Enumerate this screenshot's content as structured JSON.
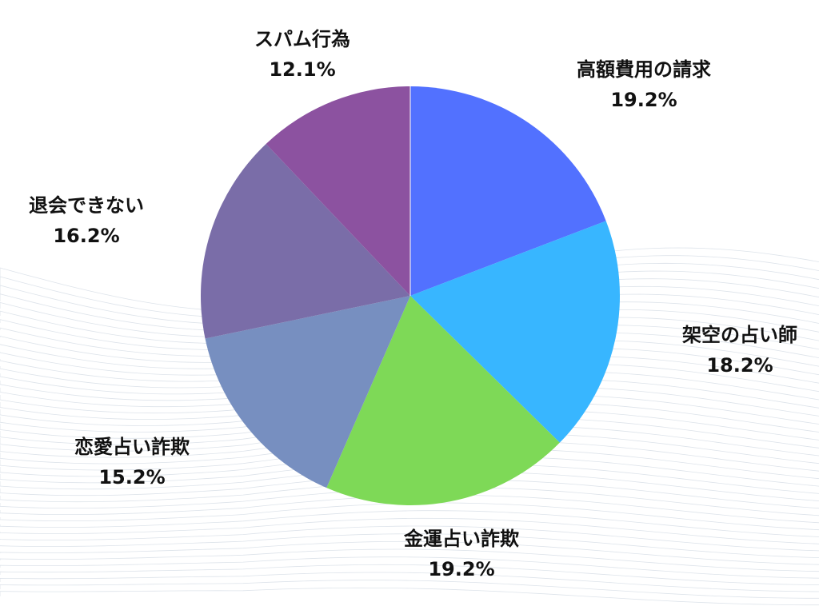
{
  "chart_data": {
    "type": "pie",
    "start": "top",
    "direction": "clockwise",
    "slices": [
      {
        "label": "高額費用の請求",
        "value": 19.2,
        "value_label": "19.2%",
        "color": "#5271FF"
      },
      {
        "label": "架空の占い師",
        "value": 18.2,
        "value_label": "18.2%",
        "color": "#38B6FF"
      },
      {
        "label": "金運占い詐欺",
        "value": 19.2,
        "value_label": "19.2%",
        "color": "#7ED957"
      },
      {
        "label": "恋愛占い詐欺",
        "value": 15.2,
        "value_label": "15.2%",
        "color": "#778FC0"
      },
      {
        "label": "退会できない",
        "value": 16.2,
        "value_label": "16.2%",
        "color": "#7A6DA8"
      },
      {
        "label": "スパム行為",
        "value": 12.1,
        "value_label": "12.1%",
        "color": "#8C52A0"
      }
    ]
  }
}
